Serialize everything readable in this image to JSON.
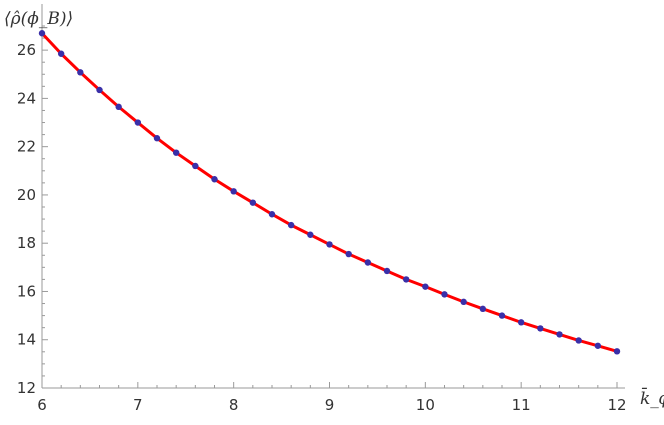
{
  "chart_data": {
    "type": "line",
    "title": "",
    "xlabel": "k̄_ϕ",
    "ylabel": "⟨ρ̂(ϕ_B)⟩",
    "xlim": [
      6,
      12
    ],
    "ylim": [
      12,
      27
    ],
    "x_ticks": [
      6,
      7,
      8,
      9,
      10,
      11,
      12
    ],
    "y_ticks": [
      12,
      14,
      16,
      18,
      20,
      22,
      24,
      26
    ],
    "grid": false,
    "legend": "none",
    "series": [
      {
        "kind": "fit-line",
        "color": "#ff0000",
        "x": [
          6,
          6.2,
          6.4,
          6.6,
          6.8,
          7,
          7.2,
          7.4,
          7.6,
          7.8,
          8,
          8.2,
          8.4,
          8.6,
          8.8,
          9,
          9.2,
          9.4,
          9.6,
          9.8,
          10,
          10.2,
          10.4,
          10.6,
          10.8,
          11,
          11.2,
          11.4,
          11.6,
          11.8,
          12
        ],
        "y": [
          26.7,
          25.85,
          25.08,
          24.35,
          23.65,
          23.0,
          22.35,
          21.75,
          21.2,
          20.65,
          20.15,
          19.68,
          19.2,
          18.75,
          18.35,
          17.95,
          17.55,
          17.2,
          16.85,
          16.5,
          16.2,
          15.88,
          15.57,
          15.28,
          15.0,
          14.72,
          14.47,
          14.22,
          13.97,
          13.75,
          13.52
        ]
      },
      {
        "kind": "points",
        "color": "#3a2fa8",
        "x": [
          6,
          6.2,
          6.4,
          6.6,
          6.8,
          7,
          7.2,
          7.4,
          7.6,
          7.8,
          8,
          8.2,
          8.4,
          8.6,
          8.8,
          9,
          9.2,
          9.4,
          9.6,
          9.8,
          10,
          10.2,
          10.4,
          10.6,
          10.8,
          11,
          11.2,
          11.4,
          11.6,
          11.8,
          12
        ],
        "y": [
          26.7,
          25.85,
          25.08,
          24.35,
          23.65,
          23.0,
          22.35,
          21.75,
          21.2,
          20.65,
          20.15,
          19.68,
          19.2,
          18.75,
          18.35,
          17.95,
          17.55,
          17.2,
          16.85,
          16.5,
          16.2,
          15.88,
          15.57,
          15.28,
          15.0,
          14.72,
          14.47,
          14.22,
          13.97,
          13.75,
          13.52
        ]
      }
    ]
  }
}
